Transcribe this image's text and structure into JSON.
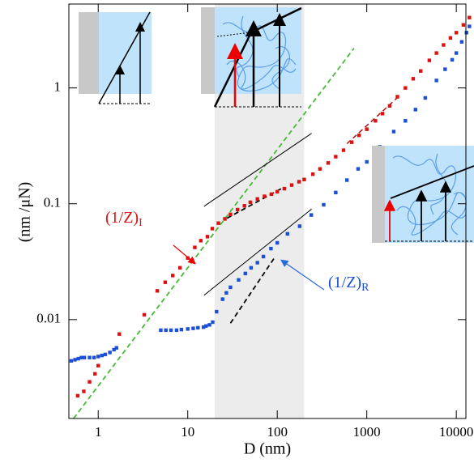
{
  "chart_data": {
    "type": "scatter",
    "x_label": "D (nm)",
    "y_label": "(nm /μN)",
    "xlog": true,
    "ylog": true,
    "xlim": [
      0.47,
      12800
    ],
    "ylim": [
      0.0014,
      5.3
    ],
    "xticks": [
      1,
      10,
      100,
      1000,
      10000
    ],
    "yticks": [
      0.01,
      0.1,
      1
    ],
    "shaded_xrange": [
      20,
      200
    ],
    "shade_color": "#ececec",
    "series": [
      {
        "name": "(1/Z)",
        "subscript": "I",
        "color": "#dd1111",
        "x": [
          0.59,
          0.69,
          0.8,
          0.92,
          1.0,
          1.72,
          3.27,
          4.57,
          5.6,
          6.8,
          8.2,
          10,
          12,
          14,
          16.6,
          18.8,
          22,
          26,
          30,
          36,
          43,
          50,
          60,
          72,
          86,
          100,
          120,
          145,
          175,
          200,
          250,
          300,
          370,
          450,
          550,
          680,
          820,
          1000,
          1250,
          1500,
          1800,
          2200,
          2700,
          3300,
          4000,
          5000,
          6000,
          7200,
          8600,
          10000,
          12000,
          14000
        ],
        "values": [
          0.0022,
          0.0024,
          0.0029,
          0.0034,
          0.004,
          0.0075,
          0.011,
          0.0177,
          0.021,
          0.024,
          0.028,
          0.034,
          0.042,
          0.048,
          0.052,
          0.061,
          0.068,
          0.074,
          0.081,
          0.089,
          0.096,
          0.103,
          0.11,
          0.116,
          0.121,
          0.127,
          0.135,
          0.145,
          0.155,
          0.162,
          0.18,
          0.2,
          0.225,
          0.255,
          0.29,
          0.34,
          0.39,
          0.44,
          0.52,
          0.6,
          0.7,
          0.84,
          1.0,
          1.2,
          1.4,
          1.73,
          2.0,
          2.35,
          2.7,
          3.0,
          3.5,
          4.05
        ]
      },
      {
        "name": "(1/Z)",
        "subscript": "R",
        "color": "#1a4fd6",
        "x": [
          0.5,
          0.55,
          0.6,
          0.65,
          0.7,
          0.8,
          0.9,
          1.0,
          1.1,
          1.2,
          1.35,
          1.5,
          1.6,
          5,
          5.7,
          6.5,
          7.5,
          8.5,
          10,
          11.5,
          13,
          15,
          16,
          17.5,
          19,
          21,
          24.5,
          27,
          30,
          37,
          44,
          51,
          60,
          70,
          85,
          100,
          130,
          178,
          240,
          330,
          450,
          600,
          800,
          1000,
          1400,
          2000,
          2700,
          3500,
          4500,
          6000,
          7500,
          9000,
          10000,
          11500,
          13000,
          14000
        ],
        "values": [
          0.0044,
          0.0045,
          0.0046,
          0.0047,
          0.0047,
          0.0047,
          0.0047,
          0.0048,
          0.0049,
          0.005,
          0.0052,
          0.0055,
          0.0057,
          0.0081,
          0.0081,
          0.0081,
          0.0081,
          0.0082,
          0.0083,
          0.0084,
          0.0085,
          0.0086,
          0.0088,
          0.009,
          0.0095,
          0.0117,
          0.015,
          0.017,
          0.019,
          0.022,
          0.025,
          0.028,
          0.031,
          0.035,
          0.041,
          0.046,
          0.055,
          0.064,
          0.08,
          0.098,
          0.125,
          0.16,
          0.2,
          0.23,
          0.31,
          0.42,
          0.52,
          0.65,
          0.82,
          1.16,
          1.45,
          1.75,
          2.0,
          2.5,
          3.0,
          3.4
        ]
      }
    ],
    "lines": [
      {
        "x": [
          0.53,
          720
        ],
        "values": [
          0.0014,
          2.2
        ],
        "color": "#44bb33",
        "dash": "6,4",
        "width": 1.8
      },
      {
        "x": [
          15.2,
          242
        ],
        "values": [
          0.095,
          0.406
        ],
        "color": "#000000",
        "dash": "none",
        "width": 1
      },
      {
        "x": [
          15.2,
          242
        ],
        "values": [
          0.0162,
          0.09
        ],
        "color": "#000000",
        "dash": "none",
        "width": 1
      },
      {
        "x": [
          27.4,
          117
        ],
        "values": [
          0.075,
          0.138
        ],
        "color": "#000000",
        "dash": "6,4",
        "width": 1.8
      },
      {
        "x": [
          30,
          95
        ],
        "values": [
          0.0093,
          0.035
        ],
        "color": "#000000",
        "dash": "6,4",
        "width": 1.8
      },
      {
        "x": [
          600,
          2300
        ],
        "values": [
          0.33,
          0.85
        ],
        "color": "#aa1111",
        "dash": "6,4",
        "width": 1.5
      }
    ]
  }
}
